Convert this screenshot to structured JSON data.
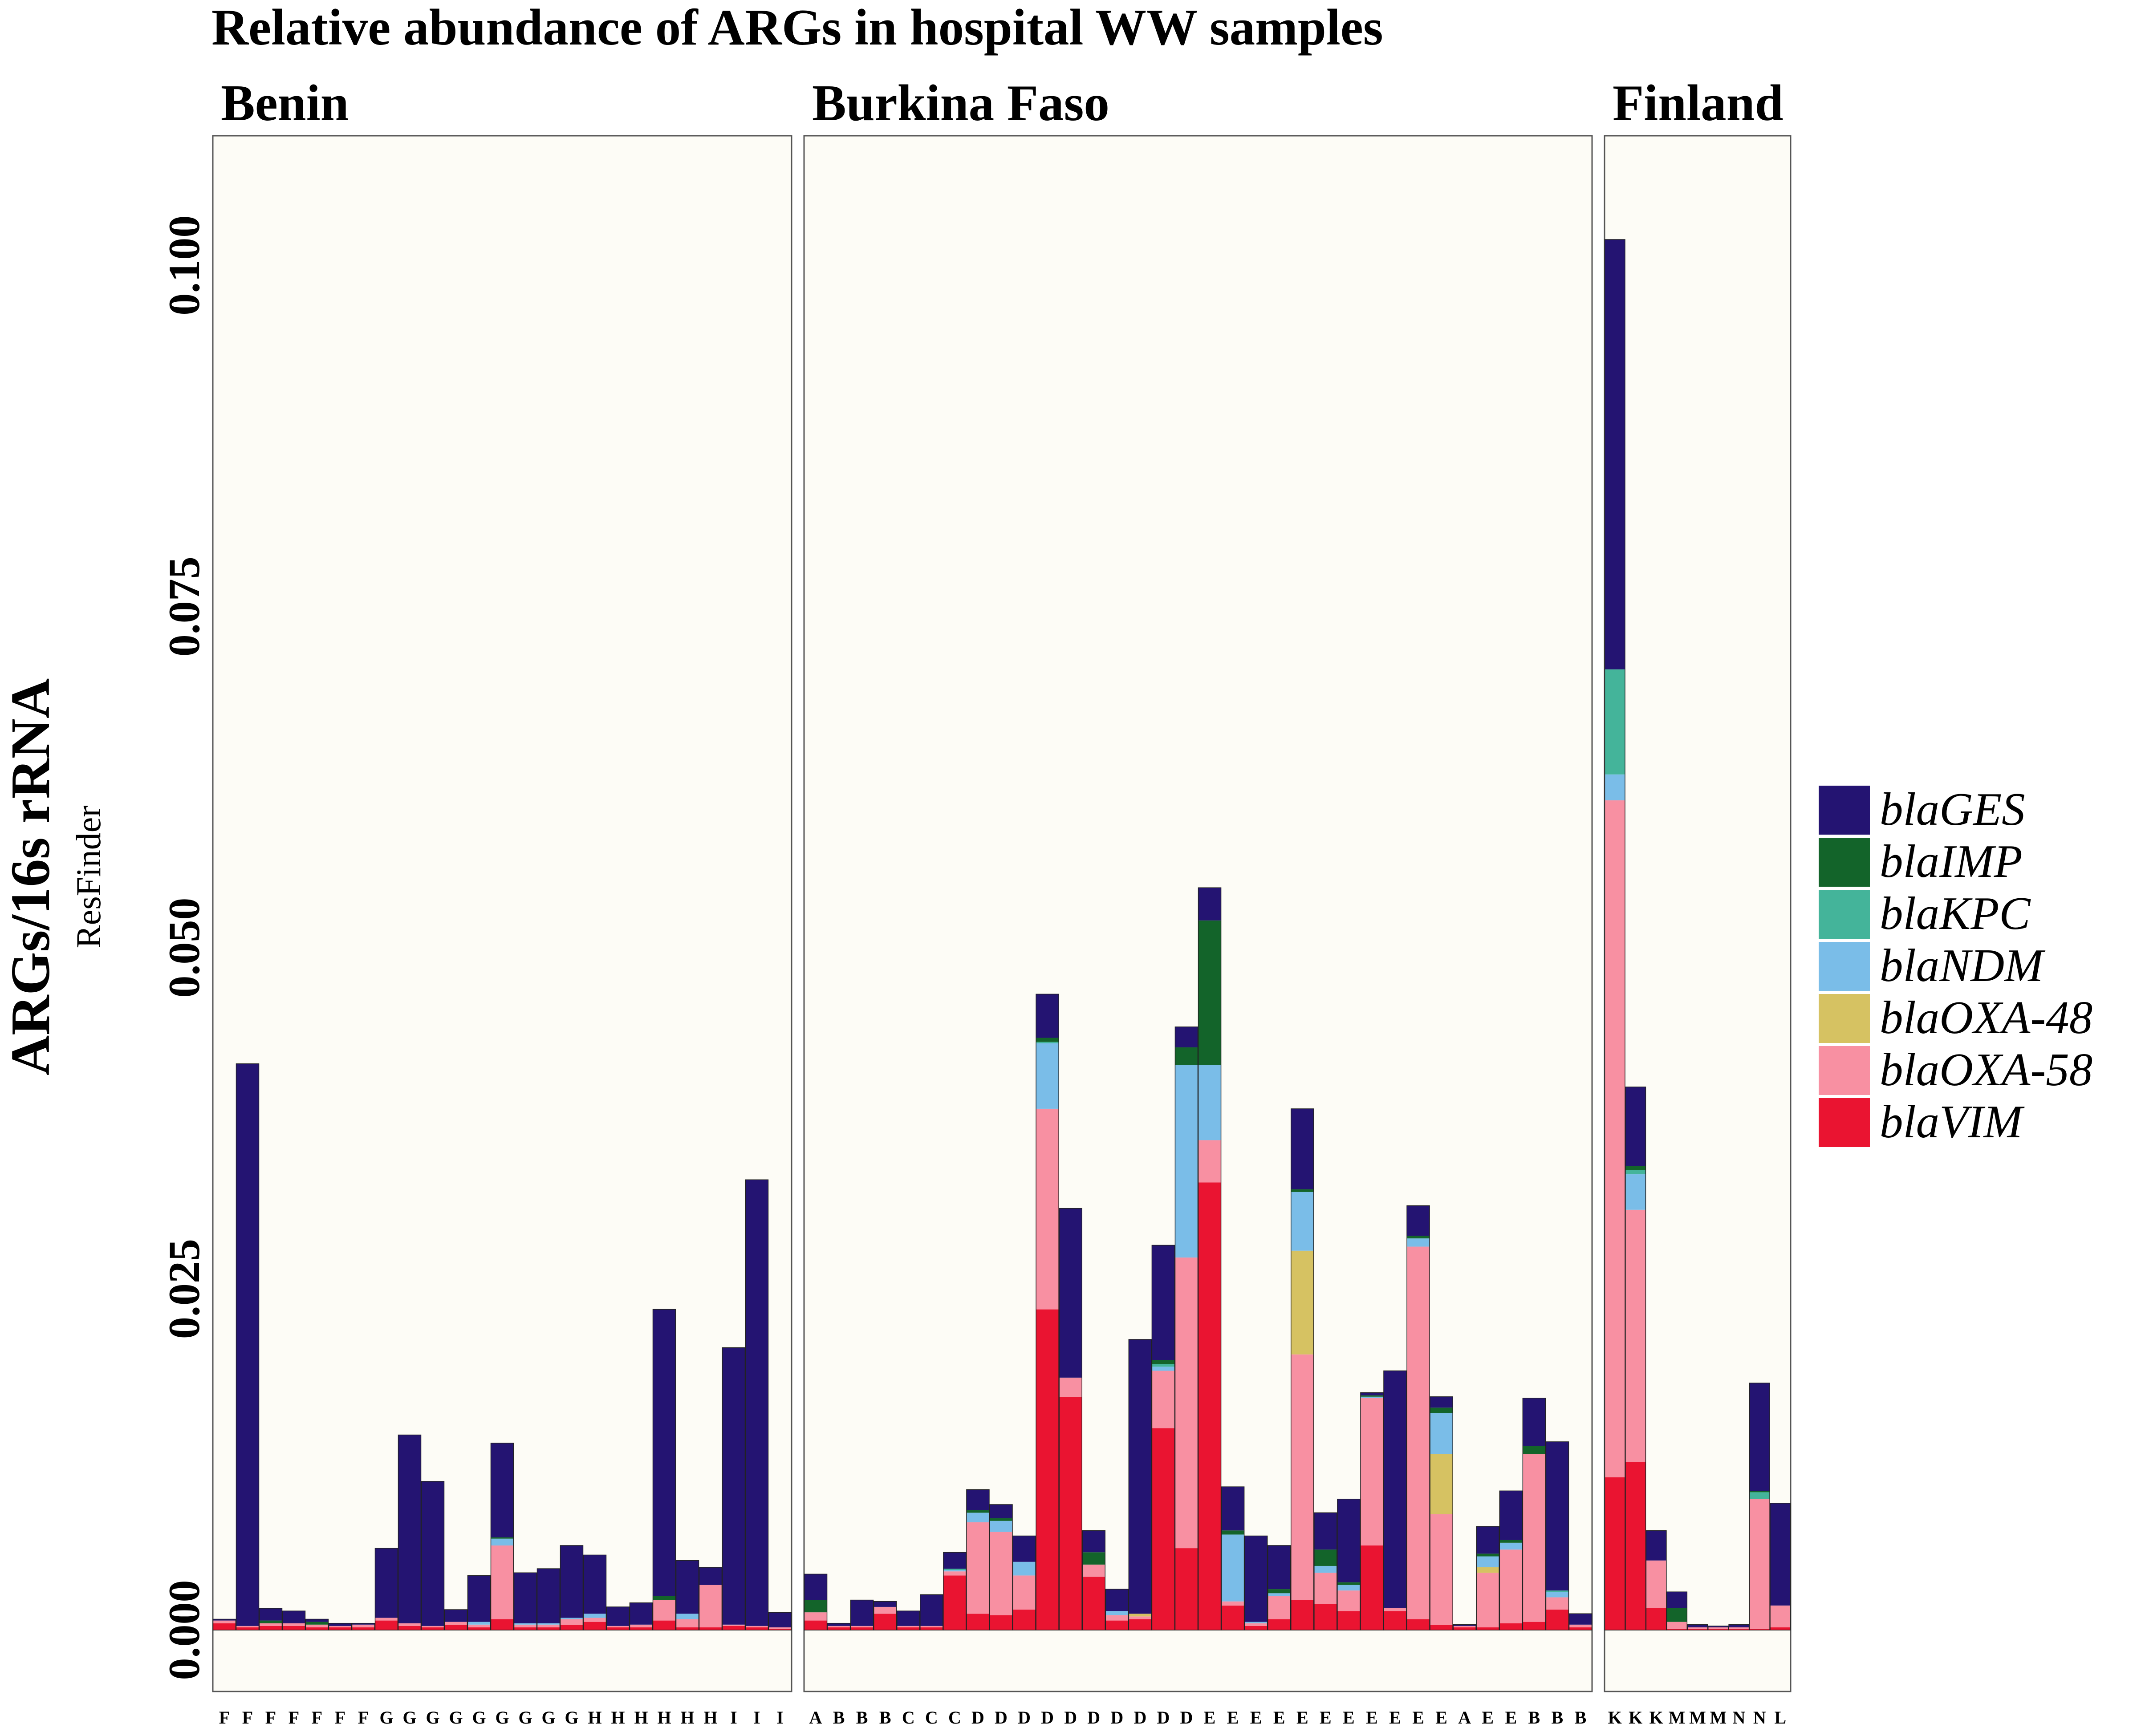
{
  "chart_data": {
    "type": "bar",
    "title": "Relative abundance of ARGs in hospital WW samples",
    "ylabel": "ARGs/16s rRNA",
    "ysubtitle": "ResFinder",
    "y_ticks": [
      "0.000",
      "0.025",
      "0.050",
      "0.075",
      "0.100"
    ],
    "ylim": [
      -0.0045,
      0.1095
    ],
    "grid": false,
    "legend_position": "right",
    "legend": [
      {
        "name": "blaGES",
        "color": "#241472"
      },
      {
        "name": "blaIMP",
        "color": "#13642a"
      },
      {
        "name": "blaKPC",
        "color": "#44b49a"
      },
      {
        "name": "blaNDM",
        "color": "#7abde8"
      },
      {
        "name": "blaOXA-48",
        "color": "#d6c262"
      },
      {
        "name": "blaOXA-58",
        "color": "#f890a2"
      },
      {
        "name": "blaVIM",
        "color": "#ea1431"
      }
    ],
    "stack_order": [
      "blaVIM",
      "blaOXA-58",
      "blaOXA-48",
      "blaNDM",
      "blaKPC",
      "blaIMP",
      "blaGES"
    ],
    "panels": [
      {
        "name": "Benin",
        "bars": [
          {
            "x": "F",
            "values": [
              0.0005,
              0.0002,
              0,
              0,
              0,
              0,
              0.0001
            ]
          },
          {
            "x": "F",
            "values": [
              0.0002,
              0.0001,
              0,
              0,
              0,
              0,
              0.0412
            ]
          },
          {
            "x": "F",
            "values": [
              0.0003,
              0.0002,
              0,
              0,
              0,
              0.0002,
              0.0009
            ]
          },
          {
            "x": "F",
            "values": [
              0.0003,
              0.0002,
              0,
              0,
              0,
              0,
              0.0009
            ]
          },
          {
            "x": "F",
            "values": [
              0.0002,
              0.0002,
              0,
              0,
              0,
              0.0002,
              0.0002
            ]
          },
          {
            "x": "F",
            "values": [
              0.0002,
              0.0001,
              0,
              0,
              0,
              0,
              0.0002
            ]
          },
          {
            "x": "F",
            "values": [
              0.0002,
              0.0002,
              0,
              0,
              0,
              0,
              0.0001
            ]
          },
          {
            "x": "G",
            "values": [
              0.0007,
              0.0002,
              0,
              0,
              0,
              0,
              0.0051
            ]
          },
          {
            "x": "G",
            "values": [
              0.0003,
              0.0002,
              0,
              0,
              0,
              0,
              0.0138
            ]
          },
          {
            "x": "G",
            "values": [
              0.0002,
              0.0001,
              0,
              0,
              0,
              0,
              0.0106
            ]
          },
          {
            "x": "G",
            "values": [
              0.0004,
              0.0002,
              0,
              0,
              0,
              0,
              0.0009
            ]
          },
          {
            "x": "G",
            "values": [
              0.0002,
              0.0002,
              0,
              0.0002,
              0,
              0,
              0.0034
            ]
          },
          {
            "x": "G",
            "values": [
              0.0008,
              0.0054,
              0,
              0.0005,
              0,
              0.0001,
              0.0069
            ]
          },
          {
            "x": "G",
            "values": [
              0.0002,
              0.0002,
              0,
              0.0001,
              0,
              0,
              0.0037
            ]
          },
          {
            "x": "G",
            "values": [
              0.0002,
              0.0002,
              0,
              0.0001,
              0,
              0,
              0.004
            ]
          },
          {
            "x": "G",
            "values": [
              0.0004,
              0.0004,
              0,
              0.0001,
              0,
              0,
              0.0053
            ]
          },
          {
            "x": "H",
            "values": [
              0.0006,
              0.0003,
              0,
              0.0003,
              0,
              0,
              0.0043
            ]
          },
          {
            "x": "H",
            "values": [
              0.0002,
              0.0001,
              0,
              0,
              0,
              0,
              0.0014
            ]
          },
          {
            "x": "H",
            "values": [
              0.0002,
              0.0002,
              0,
              0,
              0,
              0,
              0.0016
            ]
          },
          {
            "x": "H",
            "values": [
              0.0007,
              0.0015,
              0,
              0,
              0,
              0.0003,
              0.021
            ]
          },
          {
            "x": "H",
            "values": [
              0.0002,
              0.0006,
              0,
              0.0004,
              0,
              0,
              0.0039
            ]
          },
          {
            "x": "H",
            "values": [
              0.0002,
              0.0031,
              0,
              0,
              0,
              0,
              0.0013
            ]
          },
          {
            "x": "I",
            "values": [
              0.0003,
              0.0001,
              0,
              0,
              0,
              0,
              0.0203
            ]
          },
          {
            "x": "I",
            "values": [
              0.0002,
              0.0001,
              0,
              0,
              0,
              0,
              0.0327
            ]
          },
          {
            "x": "I",
            "values": [
              0.0001,
              0.0001,
              0,
              0,
              0,
              0,
              0.0011
            ]
          }
        ]
      },
      {
        "name": "Burkina Faso",
        "bars": [
          {
            "x": "A",
            "values": [
              0.0007,
              0.0006,
              0,
              0,
              0,
              0.0009,
              0.0019
            ]
          },
          {
            "x": "B",
            "values": [
              0.0002,
              0.0001,
              0,
              0,
              0,
              0,
              0.0002
            ]
          },
          {
            "x": "B",
            "values": [
              0.0002,
              0.0001,
              0,
              0,
              0,
              0,
              0.0019
            ]
          },
          {
            "x": "B",
            "values": [
              0.0012,
              0.0005,
              0,
              0,
              0,
              0,
              0.0004
            ]
          },
          {
            "x": "C",
            "values": [
              0.0002,
              0.0001,
              0,
              0,
              0,
              0,
              0.0011
            ]
          },
          {
            "x": "C",
            "values": [
              0.0002,
              0.0001,
              0,
              0,
              0,
              0,
              0.0023
            ]
          },
          {
            "x": "C",
            "values": [
              0.004,
              0.0003,
              0,
              0.0001,
              0.0001,
              0,
              0.0012
            ]
          },
          {
            "x": "D",
            "values": [
              0.0012,
              0.0067,
              0,
              0.0007,
              0,
              0.0002,
              0.0015
            ]
          },
          {
            "x": "D",
            "values": [
              0.0011,
              0.0061,
              0,
              0.0008,
              0,
              0.0002,
              0.001
            ]
          },
          {
            "x": "D",
            "values": [
              0.0015,
              0.0025,
              0,
              0.001,
              0,
              0,
              0.0019
            ]
          },
          {
            "x": "D",
            "values": [
              0.0235,
              0.0147,
              0,
              0.0048,
              0.0001,
              0.0003,
              0.0032
            ]
          },
          {
            "x": "D",
            "values": [
              0.0171,
              0.0014,
              0,
              0,
              0,
              0,
              0.0124
            ]
          },
          {
            "x": "D",
            "values": [
              0.0039,
              0.0009,
              0,
              0,
              0,
              0.0009,
              0.0016
            ]
          },
          {
            "x": "D",
            "values": [
              0.0007,
              0.0004,
              0,
              0.0003,
              0,
              0,
              0.0016
            ]
          },
          {
            "x": "D",
            "values": [
              0.0008,
              0.0002,
              0.0002,
              0,
              0,
              0,
              0.0201
            ]
          },
          {
            "x": "D",
            "values": [
              0.0148,
              0.0042,
              0,
              0.0003,
              0.0002,
              0.0003,
              0.0084
            ]
          },
          {
            "x": "D",
            "values": [
              0.006,
              0.0213,
              0,
              0.0141,
              0,
              0.0013,
              0.0015
            ]
          },
          {
            "x": "E",
            "values": [
              0.0328,
              0.0031,
              0,
              0.0055,
              0,
              0.0106,
              0.0024
            ]
          },
          {
            "x": "E",
            "values": [
              0.0018,
              0.0003,
              0,
              0.0049,
              0,
              0.0003,
              0.0032
            ]
          },
          {
            "x": "E",
            "values": [
              0.0003,
              0.0002,
              0,
              0.0001,
              0,
              0,
              0.0063
            ]
          },
          {
            "x": "E",
            "values": [
              0.0008,
              0.0017,
              0,
              0.0002,
              0,
              0.0003,
              0.0032
            ]
          },
          {
            "x": "E",
            "values": [
              0.0022,
              0.018,
              0.0076,
              0.0043,
              0,
              0.0002,
              0.0059
            ]
          },
          {
            "x": "E",
            "values": [
              0.0019,
              0.0023,
              0,
              0.0005,
              0,
              0.0012,
              0.0027
            ]
          },
          {
            "x": "E",
            "values": [
              0.0014,
              0.0015,
              0,
              0.0004,
              0,
              0.0002,
              0.0061
            ]
          },
          {
            "x": "E",
            "values": [
              0.0062,
              0.0108,
              0,
              0.0001,
              0,
              0.0001,
              0.0002
            ]
          },
          {
            "x": "E",
            "values": [
              0.0014,
              0.0002,
              0,
              0,
              0,
              0,
              0.0174
            ]
          },
          {
            "x": "E",
            "values": [
              0.0008,
              0.0273,
              0,
              0.0006,
              0,
              0.0002,
              0.0022
            ]
          },
          {
            "x": "E",
            "values": [
              0.0004,
              0.0081,
              0.0044,
              0.003,
              0,
              0.0004,
              0.0008
            ]
          },
          {
            "x": "A",
            "values": [
              0.0002,
              0.0001,
              0,
              0,
              0,
              0,
              0.0001
            ]
          },
          {
            "x": "E",
            "values": [
              0.0002,
              0.004,
              0.0004,
              0.0008,
              0,
              0.0002,
              0.002
            ]
          },
          {
            "x": "E",
            "values": [
              0.0005,
              0.0054,
              0,
              0.0005,
              0,
              0.0002,
              0.0036
            ]
          },
          {
            "x": "B",
            "values": [
              0.0006,
              0.0123,
              0,
              0,
              0,
              0.0006,
              0.0035
            ]
          },
          {
            "x": "B",
            "values": [
              0.0015,
              0.0009,
              0,
              0.0004,
              0.0001,
              0,
              0.0109
            ]
          },
          {
            "x": "B",
            "values": [
              0.0002,
              0.0002,
              0,
              0,
              0,
              0,
              0.0008
            ]
          }
        ]
      },
      {
        "name": "Finland",
        "bars": [
          {
            "x": "K",
            "values": [
              0.0112,
              0.0496,
              0,
              0.0019,
              0.0077,
              0,
              0.0315
            ]
          },
          {
            "x": "K",
            "values": [
              0.0123,
              0.0185,
              0,
              0.0026,
              0.0003,
              0.0003,
              0.0058
            ]
          },
          {
            "x": "K",
            "values": [
              0.0016,
              0.0035,
              0,
              0,
              0,
              0,
              0.0022
            ]
          },
          {
            "x": "M",
            "values": [
              0.0001,
              0.0005,
              0,
              0,
              0,
              0.001,
              0.0012
            ]
          },
          {
            "x": "M",
            "values": [
              0.0001,
              0.0001,
              0,
              0,
              0,
              0,
              0.0002
            ]
          },
          {
            "x": "M",
            "values": [
              0.0001,
              0.0001,
              0,
              0,
              0,
              0,
              0.0001
            ]
          },
          {
            "x": "N",
            "values": [
              0.0001,
              0.0001,
              0,
              0,
              0,
              0,
              0.0002
            ]
          },
          {
            "x": "N",
            "values": [
              0.0001,
              0.0095,
              0,
              0,
              0.0005,
              0.0001,
              0.0079
            ]
          },
          {
            "x": "L",
            "values": [
              0.0002,
              0.0016,
              0,
              0,
              0,
              0,
              0.0075
            ]
          }
        ]
      }
    ]
  }
}
